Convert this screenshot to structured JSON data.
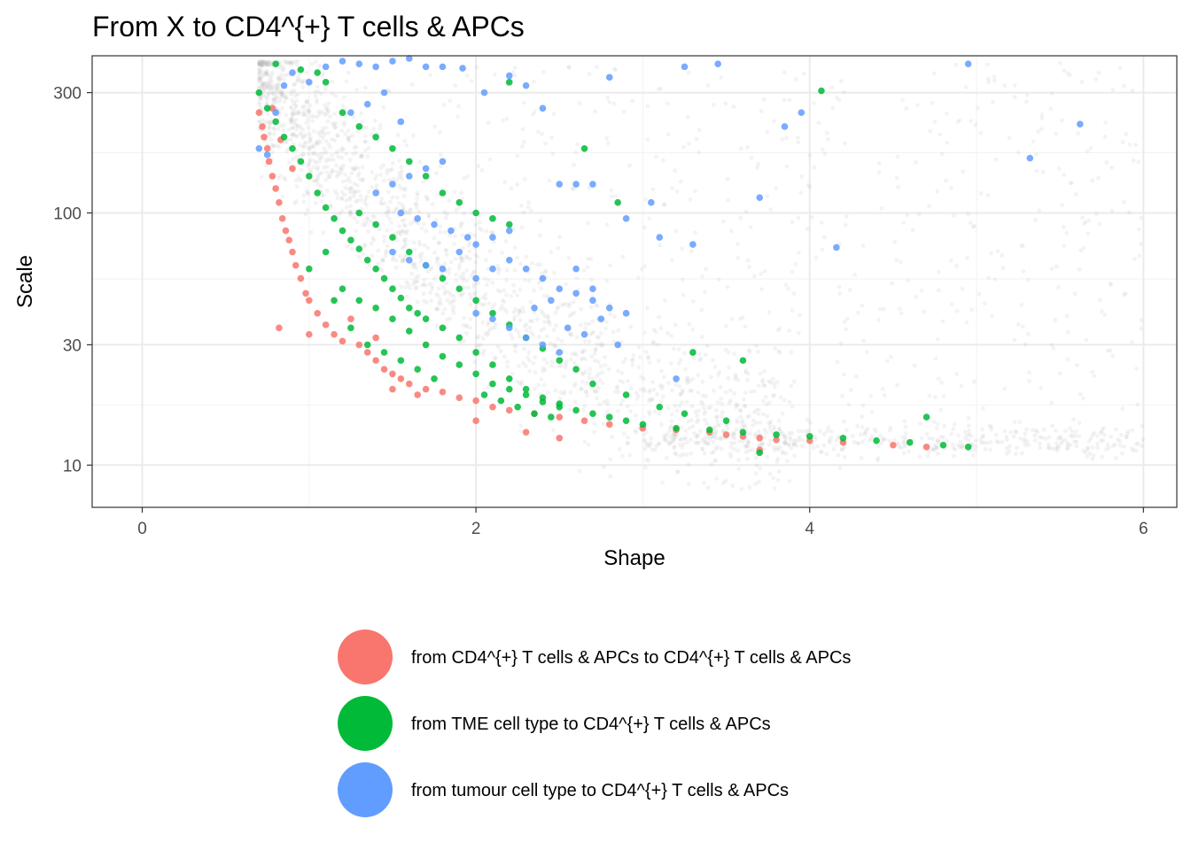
{
  "chart_data": {
    "type": "scatter",
    "title": "From X to  CD4^{+} T cells & APCs",
    "xlabel": "Shape",
    "ylabel": "Scale",
    "xlim": [
      -0.3,
      6.2
    ],
    "ylim": [
      6.8,
      420
    ],
    "y_scale": "log",
    "x_ticks": [
      0,
      2,
      4,
      6
    ],
    "x_tick_labels": [
      "0",
      "2",
      "4",
      "6"
    ],
    "y_ticks": [
      10,
      30,
      100,
      300
    ],
    "y_tick_labels": [
      "10",
      "30",
      "100",
      "300"
    ],
    "grid": true,
    "legend_position": "bottom",
    "background_series": {
      "color": "#bebebe",
      "description_visible": false
    },
    "series": [
      {
        "name": "from CD4^{+} T cells & APCs to CD4^{+} T cells & APCs",
        "color": "#F8766D",
        "points": [
          [
            0.7,
            250
          ],
          [
            0.72,
            220
          ],
          [
            0.73,
            200
          ],
          [
            0.75,
            180
          ],
          [
            0.76,
            160
          ],
          [
            0.78,
            140
          ],
          [
            0.8,
            125
          ],
          [
            0.82,
            110
          ],
          [
            0.84,
            95
          ],
          [
            0.86,
            85
          ],
          [
            0.88,
            78
          ],
          [
            0.9,
            70
          ],
          [
            0.92,
            62
          ],
          [
            0.95,
            55
          ],
          [
            0.98,
            48
          ],
          [
            1.0,
            45
          ],
          [
            1.05,
            40
          ],
          [
            1.1,
            36
          ],
          [
            1.15,
            33
          ],
          [
            1.2,
            31
          ],
          [
            0.9,
            150
          ],
          [
            0.78,
            260
          ],
          [
            0.83,
            195
          ],
          [
            1.3,
            30
          ],
          [
            1.35,
            28
          ],
          [
            1.4,
            26
          ],
          [
            1.45,
            24
          ],
          [
            1.5,
            23
          ],
          [
            1.55,
            22
          ],
          [
            1.6,
            21
          ],
          [
            1.7,
            20
          ],
          [
            1.8,
            19.5
          ],
          [
            1.9,
            18.5
          ],
          [
            2.0,
            18
          ],
          [
            2.1,
            17
          ],
          [
            2.2,
            16.5
          ],
          [
            2.35,
            16
          ],
          [
            2.5,
            15.5
          ],
          [
            2.65,
            15
          ],
          [
            2.8,
            14.5
          ],
          [
            3.0,
            14
          ],
          [
            3.2,
            13.8
          ],
          [
            3.4,
            13.5
          ],
          [
            3.5,
            13.2
          ],
          [
            3.6,
            13
          ],
          [
            3.7,
            12.8
          ],
          [
            3.8,
            12.6
          ],
          [
            4.0,
            12.5
          ],
          [
            4.2,
            12.3
          ],
          [
            4.5,
            12.0
          ],
          [
            4.7,
            11.8
          ],
          [
            0.82,
            35
          ],
          [
            1.0,
            33
          ],
          [
            1.25,
            38
          ],
          [
            1.4,
            32
          ],
          [
            1.5,
            20
          ],
          [
            1.65,
            19
          ],
          [
            2.0,
            15
          ],
          [
            2.3,
            13.5
          ],
          [
            2.5,
            12.8
          ],
          [
            3.7,
            11.5
          ]
        ]
      },
      {
        "name": "from TME cell type to CD4^{+} T cells & APCs",
        "color": "#00BA38",
        "points": [
          [
            0.7,
            300
          ],
          [
            0.75,
            260
          ],
          [
            0.8,
            230
          ],
          [
            0.85,
            200
          ],
          [
            0.9,
            180
          ],
          [
            0.95,
            160
          ],
          [
            1.0,
            140
          ],
          [
            1.05,
            120
          ],
          [
            1.1,
            105
          ],
          [
            1.15,
            95
          ],
          [
            1.2,
            85
          ],
          [
            1.25,
            78
          ],
          [
            1.3,
            72
          ],
          [
            1.35,
            65
          ],
          [
            1.4,
            60
          ],
          [
            1.45,
            55
          ],
          [
            1.5,
            50
          ],
          [
            1.55,
            46
          ],
          [
            1.6,
            42
          ],
          [
            1.65,
            40
          ],
          [
            1.7,
            38
          ],
          [
            1.8,
            35
          ],
          [
            1.9,
            32
          ],
          [
            2.0,
            28
          ],
          [
            2.1,
            25
          ],
          [
            2.2,
            22
          ],
          [
            2.3,
            20
          ],
          [
            2.4,
            18.5
          ],
          [
            2.5,
            17.5
          ],
          [
            2.6,
            16.5
          ],
          [
            2.7,
            16
          ],
          [
            2.8,
            15.5
          ],
          [
            2.9,
            15
          ],
          [
            3.0,
            14.5
          ],
          [
            3.2,
            14
          ],
          [
            3.4,
            13.8
          ],
          [
            3.6,
            13.5
          ],
          [
            3.8,
            13.2
          ],
          [
            4.0,
            13.0
          ],
          [
            4.2,
            12.8
          ],
          [
            4.4,
            12.5
          ],
          [
            4.6,
            12.3
          ],
          [
            4.8,
            12.0
          ],
          [
            4.95,
            11.8
          ],
          [
            4.7,
            15.5
          ],
          [
            0.8,
            390
          ],
          [
            0.95,
            370
          ],
          [
            1.05,
            360
          ],
          [
            1.1,
            330
          ],
          [
            1.2,
            250
          ],
          [
            1.3,
            220
          ],
          [
            1.4,
            200
          ],
          [
            1.5,
            180
          ],
          [
            1.6,
            160
          ],
          [
            1.7,
            140
          ],
          [
            1.8,
            120
          ],
          [
            1.9,
            110
          ],
          [
            2.0,
            100
          ],
          [
            2.1,
            95
          ],
          [
            2.2,
            90
          ],
          [
            1.2,
            50
          ],
          [
            1.3,
            45
          ],
          [
            1.4,
            42
          ],
          [
            1.5,
            38
          ],
          [
            1.6,
            34
          ],
          [
            1.7,
            30
          ],
          [
            1.8,
            27
          ],
          [
            1.9,
            25
          ],
          [
            2.0,
            23
          ],
          [
            2.1,
            21
          ],
          [
            2.2,
            20
          ],
          [
            2.3,
            19
          ],
          [
            2.4,
            17.8
          ],
          [
            2.5,
            17
          ],
          [
            1.3,
            100
          ],
          [
            1.4,
            90
          ],
          [
            1.5,
            80
          ],
          [
            1.6,
            70
          ],
          [
            1.7,
            62
          ],
          [
            1.8,
            55
          ],
          [
            1.9,
            50
          ],
          [
            2.0,
            45
          ],
          [
            2.1,
            40
          ],
          [
            2.2,
            36
          ],
          [
            2.3,
            32
          ],
          [
            2.4,
            29
          ],
          [
            2.5,
            26
          ],
          [
            2.6,
            24
          ],
          [
            2.2,
            330
          ],
          [
            2.65,
            180
          ],
          [
            2.85,
            110
          ],
          [
            3.3,
            28
          ],
          [
            3.6,
            26
          ],
          [
            4.07,
            305
          ],
          [
            3.7,
            11.2
          ],
          [
            2.7,
            21
          ],
          [
            2.9,
            19
          ],
          [
            3.1,
            17
          ],
          [
            3.25,
            16
          ],
          [
            3.5,
            15
          ],
          [
            1.0,
            60
          ],
          [
            1.1,
            70
          ],
          [
            1.15,
            45
          ],
          [
            1.25,
            35
          ],
          [
            1.35,
            30
          ],
          [
            1.45,
            28
          ],
          [
            1.55,
            26
          ],
          [
            1.65,
            24
          ],
          [
            1.75,
            22
          ],
          [
            2.05,
            19
          ],
          [
            2.15,
            18
          ],
          [
            2.25,
            17
          ],
          [
            2.35,
            16
          ],
          [
            2.45,
            15.5
          ]
        ]
      },
      {
        "name": "from tumour cell type to CD4^{+} T cells & APCs",
        "color": "#619CFF",
        "points": [
          [
            0.7,
            180
          ],
          [
            0.75,
            170
          ],
          [
            0.8,
            250
          ],
          [
            0.85,
            320
          ],
          [
            0.9,
            360
          ],
          [
            1.0,
            330
          ],
          [
            1.1,
            380
          ],
          [
            1.2,
            400
          ],
          [
            1.3,
            390
          ],
          [
            1.4,
            380
          ],
          [
            1.5,
            400
          ],
          [
            1.6,
            410
          ],
          [
            1.7,
            380
          ],
          [
            1.8,
            380
          ],
          [
            1.92,
            375
          ],
          [
            2.05,
            300
          ],
          [
            2.2,
            350
          ],
          [
            2.3,
            320
          ],
          [
            2.4,
            260
          ],
          [
            2.8,
            345
          ],
          [
            3.25,
            380
          ],
          [
            3.45,
            390
          ],
          [
            4.95,
            390
          ],
          [
            3.95,
            250
          ],
          [
            3.85,
            220
          ],
          [
            5.62,
            225
          ],
          [
            5.32,
            165
          ],
          [
            3.7,
            115
          ],
          [
            4.16,
            73
          ],
          [
            3.1,
            80
          ],
          [
            3.3,
            75
          ],
          [
            2.9,
            95
          ],
          [
            3.05,
            110
          ],
          [
            2.5,
            130
          ],
          [
            2.6,
            130
          ],
          [
            2.7,
            130
          ],
          [
            2.0,
            55
          ],
          [
            2.1,
            60
          ],
          [
            2.2,
            65
          ],
          [
            2.3,
            60
          ],
          [
            2.4,
            55
          ],
          [
            2.5,
            50
          ],
          [
            2.6,
            48
          ],
          [
            2.7,
            45
          ],
          [
            2.8,
            42
          ],
          [
            2.9,
            40
          ],
          [
            2.55,
            35
          ],
          [
            2.65,
            33
          ],
          [
            2.85,
            30
          ],
          [
            3.2,
            22
          ],
          [
            1.5,
            70
          ],
          [
            1.6,
            65
          ],
          [
            1.7,
            62
          ],
          [
            1.8,
            60
          ],
          [
            1.9,
            70
          ],
          [
            2.0,
            75
          ],
          [
            2.1,
            80
          ],
          [
            2.2,
            85
          ],
          [
            1.55,
            100
          ],
          [
            1.65,
            95
          ],
          [
            1.75,
            90
          ],
          [
            1.85,
            85
          ],
          [
            1.95,
            80
          ],
          [
            1.4,
            120
          ],
          [
            1.5,
            130
          ],
          [
            1.6,
            140
          ],
          [
            1.7,
            150
          ],
          [
            1.8,
            160
          ],
          [
            1.25,
            250
          ],
          [
            1.35,
            270
          ],
          [
            1.45,
            300
          ],
          [
            1.55,
            230
          ],
          [
            2.0,
            40
          ],
          [
            2.1,
            38
          ],
          [
            2.2,
            35
          ],
          [
            2.3,
            32
          ],
          [
            2.4,
            30
          ],
          [
            2.5,
            28
          ],
          [
            2.7,
            50
          ],
          [
            2.75,
            38
          ],
          [
            2.6,
            60
          ],
          [
            2.45,
            45
          ],
          [
            2.35,
            42
          ]
        ]
      }
    ]
  }
}
